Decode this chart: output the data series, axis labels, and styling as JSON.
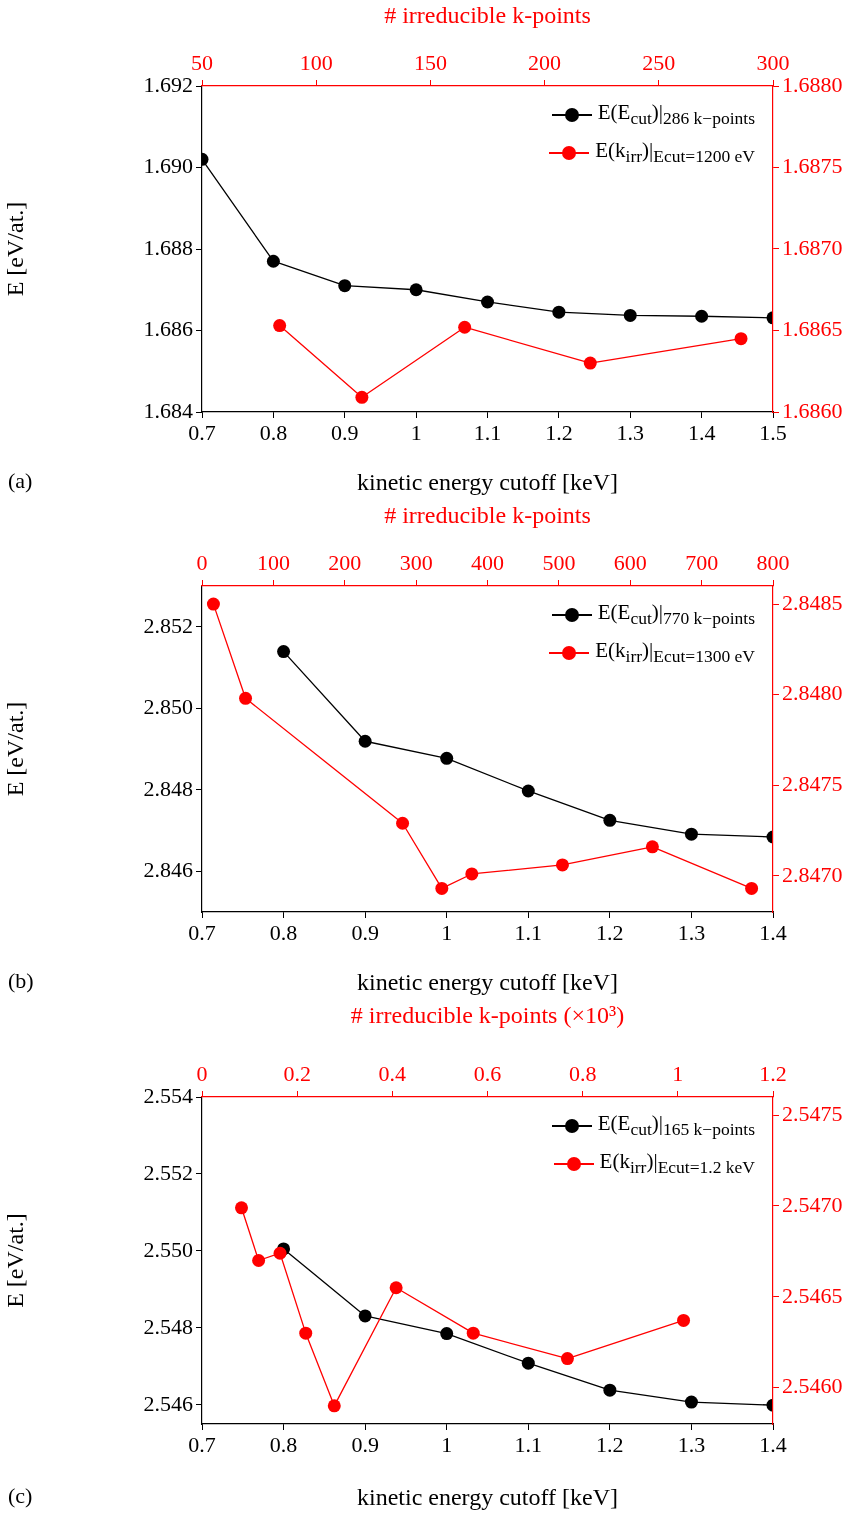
{
  "chart_data": [
    {
      "type": "line",
      "xlabel": "kinetic energy cutoff [keV]",
      "ylabel": "E [eV/at.]",
      "annotations": [
        "(a)"
      ],
      "grid": false,
      "legend": "top right",
      "marker": "circle",
      "line_style": "solid",
      "xlim": [
        0.7,
        1.5
      ],
      "xticks": [
        0.7,
        0.8,
        0.9,
        1,
        1.1,
        1.2,
        1.3,
        1.4,
        1.5
      ],
      "ylim": [
        1.684,
        1.692
      ],
      "yticks": [
        1.684,
        1.686,
        1.688,
        {
          "value": 1.69,
          "label": "1.690"
        },
        1.692
      ],
      "series": [
        {
          "name": "E(E$_{cut}$)|$_{286 k−points}$",
          "color": "#000000",
          "x": [
            0.7,
            0.8,
            0.9,
            1,
            1.1,
            1.2,
            1.3,
            1.4,
            1.5
          ],
          "values": [
            1.6902,
            1.6877,
            1.6871,
            1.687,
            1.6867,
            1.68645,
            1.68637,
            1.68635,
            1.68631
          ]
        }
      ]
    },
    {
      "type": "line",
      "xlabel": "# irreducible k-points",
      "grid": false,
      "legend": "top right",
      "marker": "circle",
      "line_style": "solid",
      "xlim": [
        50,
        300
      ],
      "xticks": [
        50,
        100,
        150,
        200,
        250,
        300
      ],
      "ylim": [
        1.686,
        1.688
      ],
      "yticks": [
        {
          "value": 1.686,
          "label": "1.6860"
        },
        1.6865,
        {
          "value": 1.687,
          "label": "1.6870"
        },
        1.6875,
        {
          "value": 1.688,
          "label": "1.6880"
        }
      ],
      "series": [
        {
          "name": "E(k$_{irr}$)|$_{Ecut=1200 eV}$",
          "color": "#ff0000",
          "x": [
            84,
            120,
            165,
            220,
            286
          ],
          "values": [
            1.68653,
            1.68609,
            1.68652,
            1.6863,
            1.68645
          ]
        }
      ]
    },
    {
      "type": "line",
      "xlabel": "kinetic energy cutoff [keV]",
      "ylabel": "E [eV/at.]",
      "annotations": [
        "(b)"
      ],
      "grid": false,
      "legend": "top right",
      "marker": "circle",
      "line_style": "solid",
      "xlim": [
        0.7,
        1.4
      ],
      "xticks": [
        0.7,
        0.8,
        0.9,
        1,
        1.1,
        1.2,
        1.3,
        1.4
      ],
      "ylim": [
        2.845,
        2.853
      ],
      "yticks": [
        2.846,
        2.848,
        {
          "value": 2.85,
          "label": "2.850"
        },
        2.852
      ],
      "series": [
        {
          "name": "E(E$_{cut}$)|$_{770 k−points}$",
          "color": "#000000",
          "x": [
            0.8,
            0.9,
            1,
            1.1,
            1.2,
            1.3,
            1.4
          ],
          "values": [
            2.85139,
            2.84919,
            2.84877,
            2.84797,
            2.84725,
            2.84691,
            2.84684
          ]
        }
      ]
    },
    {
      "type": "line",
      "xlabel": "# irreducible k-points",
      "grid": false,
      "legend": "top right",
      "marker": "circle",
      "line_style": "solid",
      "xlim": [
        0,
        800
      ],
      "xticks": [
        0,
        100,
        200,
        300,
        400,
        500,
        600,
        700,
        800
      ],
      "ylim": [
        2.8468,
        2.8486
      ],
      "yticks": [
        {
          "value": 2.847,
          "label": "2.8470"
        },
        2.8475,
        {
          "value": 2.848,
          "label": "2.8480"
        },
        2.8485
      ],
      "series": [
        {
          "name": "E(k$_{irr}$)|$_{Ecut=1300 eV}$",
          "color": "#ff0000",
          "x": [
            16,
            61,
            281,
            336,
            378,
            505,
            631,
            770
          ],
          "values": [
            2.8485,
            2.84798,
            2.84729,
            2.84693,
            2.84701,
            2.84706,
            2.84716,
            2.84693
          ]
        }
      ]
    },
    {
      "type": "line",
      "xlabel": "kinetic energy cutoff [keV]",
      "ylabel": "E [eV/at.]",
      "annotations": [
        "(c)"
      ],
      "grid": false,
      "legend": "top right",
      "marker": "circle",
      "line_style": "solid",
      "xlim": [
        0.7,
        1.4
      ],
      "xticks": [
        0.7,
        0.8,
        0.9,
        1,
        1.1,
        1.2,
        1.3,
        1.4
      ],
      "ylim": [
        2.5455,
        2.554
      ],
      "yticks": [
        2.546,
        2.548,
        {
          "value": 2.55,
          "label": "2.550"
        },
        2.552,
        2.554
      ],
      "series": [
        {
          "name": "E(E$_{cut}$)|$_{165 k−points}$",
          "color": "#000000",
          "x": [
            0.8,
            0.9,
            1,
            1.1,
            1.2,
            1.3,
            1.4
          ],
          "values": [
            2.55005,
            2.54831,
            2.54785,
            2.54708,
            2.54638,
            2.54607,
            2.54599
          ]
        }
      ]
    },
    {
      "type": "line",
      "xlabel": "# irreducible k-points (×10³)",
      "grid": false,
      "legend": "top right",
      "marker": "circle",
      "line_style": "solid",
      "xlim": [
        0,
        1.2
      ],
      "xticks": [
        0,
        0.2,
        0.4,
        0.6,
        0.8,
        1,
        1.2
      ],
      "ylim": [
        2.5458,
        2.5476
      ],
      "yticks": [
        {
          "value": 2.546,
          "label": "2.5460"
        },
        2.5465,
        {
          "value": 2.547,
          "label": "2.5470"
        },
        2.5475
      ],
      "series": [
        {
          "name": "E(k$_{irr}$)|$_{Ecut=1.2 keV}$",
          "color": "#ff0000",
          "x": [
            0.083,
            0.119,
            0.164,
            0.218,
            0.278,
            0.408,
            0.57,
            0.768,
            1.012
          ],
          "values": [
            2.54699,
            2.5467,
            2.54674,
            2.5463,
            2.5459,
            2.54655,
            2.5463,
            2.54616,
            2.54637
          ]
        }
      ]
    }
  ]
}
